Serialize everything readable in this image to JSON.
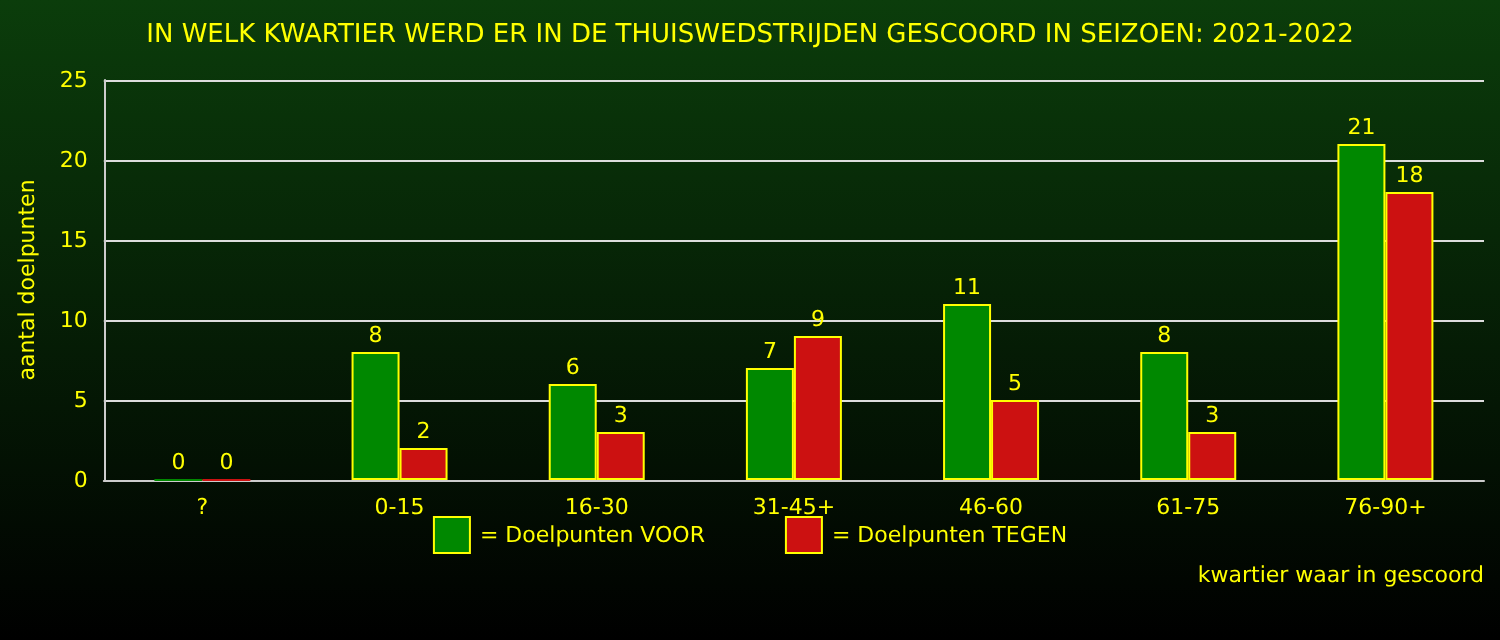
{
  "chart_data": {
    "type": "bar",
    "title": "IN WELK KWARTIER WERD ER IN DE THUISWEDSTRIJDEN GESCOORD IN SEIZOEN: 2021-2022",
    "xlabel": "kwartier waar in gescoord",
    "ylabel": "aantal doelpunten",
    "categories": [
      "?",
      "0-15",
      "16-30",
      "31-45+",
      "46-60",
      "61-75",
      "76-90+"
    ],
    "series": [
      {
        "name": "= Doelpunten VOOR",
        "color": "#008800",
        "values": [
          0,
          8,
          6,
          7,
          11,
          8,
          21
        ]
      },
      {
        "name": "= Doelpunten TEGEN",
        "color": "#cc1111",
        "values": [
          0,
          2,
          3,
          9,
          5,
          3,
          18
        ]
      }
    ],
    "ylim": [
      0,
      25
    ],
    "yticks": [
      0,
      5,
      10,
      15,
      20,
      25
    ],
    "grid": "y",
    "legend": "bottom",
    "data_labels": true
  }
}
